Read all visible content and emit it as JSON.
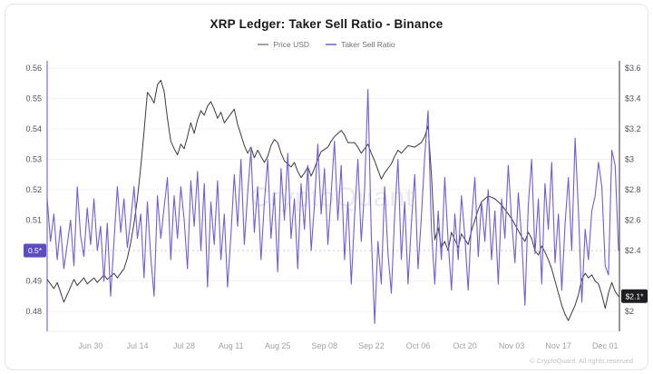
{
  "header": {
    "title": "XRP Ledger: Taker Sell Ratio - Binance"
  },
  "legend": {
    "items": [
      {
        "label": "Price USD",
        "color": "#a1a1aa"
      },
      {
        "label": "Taker Sell Ratio",
        "color": "#8f87d8"
      }
    ]
  },
  "footer": {
    "copyright": "© CryptoQuant. All rights reserved"
  },
  "chart_data": {
    "type": "line",
    "title": "XRP Ledger: Taker Sell Ratio - Binance",
    "watermark": "CryptoQuant",
    "x_axis": {
      "day_range": [
        0,
        171
      ],
      "tick_days": [
        13,
        27,
        41,
        55,
        69,
        83,
        97,
        111,
        125,
        139,
        153,
        167
      ],
      "tick_labels": [
        "Jun 30",
        "Jul 14",
        "Jul 28",
        "Aug 11",
        "Aug 25",
        "Sep 08",
        "Sep 22",
        "Oct 06",
        "Oct 20",
        "Nov 03",
        "Nov 17",
        "Dec 01"
      ]
    },
    "left_axis": {
      "name": "Taker Sell Ratio",
      "range": [
        0.48,
        0.56
      ],
      "grid_values": [
        0.48,
        0.49,
        0.5,
        0.51,
        0.52,
        0.53,
        0.54,
        0.55,
        0.56
      ],
      "tick_labels": [
        {
          "v": 0.48,
          "label": "0.48"
        },
        {
          "v": 0.49,
          "label": "0.49"
        },
        {
          "v": 0.51,
          "label": "0.51"
        },
        {
          "v": 0.52,
          "label": "0.52"
        },
        {
          "v": 0.53,
          "label": "0.53"
        },
        {
          "v": 0.54,
          "label": "0.54"
        },
        {
          "v": 0.55,
          "label": "0.55"
        },
        {
          "v": 0.56,
          "label": "0.56"
        }
      ],
      "badge": {
        "label": "0.5*",
        "value": 0.5,
        "color": "#5b4bc4",
        "text_color": "#ffffff"
      },
      "axis_line_color": "#7b6fd6"
    },
    "right_axis": {
      "name": "Price USD",
      "range": [
        2.0,
        3.6
      ],
      "tick_labels": [
        {
          "v": 2.0,
          "label": "$2"
        },
        {
          "v": 2.4,
          "label": "$2.4"
        },
        {
          "v": 2.6,
          "label": "$2.6"
        },
        {
          "v": 2.8,
          "label": "$2.8"
        },
        {
          "v": 3.0,
          "label": "$3"
        },
        {
          "v": 3.2,
          "label": "$3.2"
        },
        {
          "v": 3.4,
          "label": "$3.4"
        },
        {
          "v": 3.6,
          "label": "$3.6"
        }
      ],
      "badge": {
        "label": "$2.1*",
        "value": 2.1,
        "color": "#1f1f23",
        "text_color": "#ffffff"
      },
      "axis_line_color": "#52525b"
    },
    "reference_line": {
      "axis": "left",
      "value": 0.5,
      "style": "dashed",
      "color": "#cfcfcf"
    },
    "series": [
      {
        "name": "Price USD",
        "axis": "right",
        "color": "#3a3a40",
        "points": [
          [
            0,
            2.21
          ],
          [
            2,
            2.15
          ],
          [
            3,
            2.19
          ],
          [
            5,
            2.06
          ],
          [
            7,
            2.16
          ],
          [
            8,
            2.21
          ],
          [
            9,
            2.17
          ],
          [
            11,
            2.22
          ],
          [
            12,
            2.18
          ],
          [
            14,
            2.22
          ],
          [
            15,
            2.19
          ],
          [
            17,
            2.24
          ],
          [
            18,
            2.21
          ],
          [
            20,
            2.25
          ],
          [
            21,
            2.22
          ],
          [
            23,
            2.28
          ],
          [
            24,
            2.35
          ],
          [
            25,
            2.45
          ],
          [
            26,
            2.58
          ],
          [
            27,
            2.74
          ],
          [
            28,
            2.95
          ],
          [
            29,
            3.18
          ],
          [
            30,
            3.44
          ],
          [
            31,
            3.41
          ],
          [
            32,
            3.37
          ],
          [
            33,
            3.49
          ],
          [
            34,
            3.52
          ],
          [
            35,
            3.45
          ],
          [
            36,
            3.27
          ],
          [
            37,
            3.12
          ],
          [
            38,
            3.07
          ],
          [
            39,
            3.03
          ],
          [
            40,
            3.1
          ],
          [
            41,
            3.07
          ],
          [
            42,
            3.15
          ],
          [
            43,
            3.24
          ],
          [
            44,
            3.17
          ],
          [
            45,
            3.26
          ],
          [
            46,
            3.32
          ],
          [
            47,
            3.29
          ],
          [
            48,
            3.35
          ],
          [
            49,
            3.38
          ],
          [
            50,
            3.33
          ],
          [
            51,
            3.27
          ],
          [
            52,
            3.31
          ],
          [
            53,
            3.24
          ],
          [
            55,
            3.3
          ],
          [
            56,
            3.33
          ],
          [
            57,
            3.23
          ],
          [
            58,
            3.16
          ],
          [
            59,
            3.09
          ],
          [
            60,
            3.04
          ],
          [
            61,
            3.08
          ],
          [
            62,
            3.01
          ],
          [
            63,
            3.06
          ],
          [
            64,
            3.02
          ],
          [
            65,
            2.98
          ],
          [
            66,
            3.02
          ],
          [
            67,
            3.09
          ],
          [
            68,
            3.13
          ],
          [
            69,
            3.11
          ],
          [
            70,
            3.04
          ],
          [
            71,
            2.99
          ],
          [
            73,
            2.95
          ],
          [
            74,
            2.98
          ],
          [
            75,
            2.92
          ],
          [
            76,
            2.88
          ],
          [
            77,
            2.91
          ],
          [
            78,
            2.95
          ],
          [
            79,
            2.89
          ],
          [
            80,
            2.94
          ],
          [
            81,
            3.0
          ],
          [
            82,
            3.05
          ],
          [
            84,
            3.08
          ],
          [
            85,
            3.12
          ],
          [
            86,
            3.15
          ],
          [
            88,
            3.19
          ],
          [
            89,
            3.16
          ],
          [
            90,
            3.11
          ],
          [
            92,
            3.11
          ],
          [
            93,
            3.08
          ],
          [
            94,
            3.04
          ],
          [
            96,
            3.1
          ],
          [
            97,
            3.04
          ],
          [
            98,
            2.99
          ],
          [
            100,
            2.87
          ],
          [
            101,
            2.91
          ],
          [
            103,
            2.97
          ],
          [
            104,
            3.02
          ],
          [
            105,
            3.06
          ],
          [
            106,
            3.04
          ],
          [
            108,
            3.09
          ],
          [
            110,
            3.08
          ],
          [
            112,
            3.11
          ],
          [
            113,
            3.15
          ],
          [
            114,
            3.22
          ],
          [
            115,
            2.9
          ],
          [
            116,
            2.47
          ],
          [
            117,
            2.55
          ],
          [
            118,
            2.42
          ],
          [
            119,
            2.46
          ],
          [
            120,
            2.4
          ],
          [
            121,
            2.52
          ],
          [
            123,
            2.42
          ],
          [
            124,
            2.51
          ],
          [
            126,
            2.44
          ],
          [
            127,
            2.53
          ],
          [
            128,
            2.6
          ],
          [
            129,
            2.67
          ],
          [
            130,
            2.72
          ],
          [
            132,
            2.76
          ],
          [
            134,
            2.74
          ],
          [
            136,
            2.7
          ],
          [
            138,
            2.64
          ],
          [
            139,
            2.61
          ],
          [
            140,
            2.57
          ],
          [
            142,
            2.49
          ],
          [
            143,
            2.46
          ],
          [
            144,
            2.52
          ],
          [
            145,
            2.48
          ],
          [
            146,
            2.4
          ],
          [
            147,
            2.37
          ],
          [
            148,
            2.43
          ],
          [
            149,
            2.39
          ],
          [
            150,
            2.34
          ],
          [
            151,
            2.28
          ],
          [
            152,
            2.2
          ],
          [
            153,
            2.12
          ],
          [
            154,
            2.04
          ],
          [
            155,
            1.98
          ],
          [
            156,
            1.94
          ],
          [
            157,
            1.99
          ],
          [
            158,
            2.04
          ],
          [
            159,
            2.11
          ],
          [
            160,
            2.21
          ],
          [
            161,
            2.25
          ],
          [
            162,
            2.22
          ],
          [
            163,
            2.24
          ],
          [
            164,
            2.2
          ],
          [
            165,
            2.18
          ],
          [
            166,
            2.11
          ],
          [
            167,
            2.02
          ],
          [
            168,
            2.12
          ],
          [
            169,
            2.19
          ],
          [
            170,
            2.13
          ],
          [
            171,
            2.1
          ]
        ]
      },
      {
        "name": "Taker Sell Ratio",
        "axis": "left",
        "color": "#6e5fd6",
        "day_start": 0,
        "values": [
          0.517,
          0.503,
          0.512,
          0.497,
          0.508,
          0.494,
          0.502,
          0.51,
          0.495,
          0.521,
          0.505,
          0.498,
          0.514,
          0.502,
          0.517,
          0.5,
          0.508,
          0.49,
          0.509,
          0.485,
          0.503,
          0.521,
          0.506,
          0.517,
          0.501,
          0.51,
          0.521,
          0.504,
          0.512,
          0.491,
          0.516,
          0.498,
          0.485,
          0.518,
          0.504,
          0.514,
          0.524,
          0.497,
          0.518,
          0.504,
          0.521,
          0.51,
          0.494,
          0.523,
          0.508,
          0.526,
          0.5,
          0.522,
          0.488,
          0.516,
          0.502,
          0.523,
          0.497,
          0.512,
          0.488,
          0.505,
          0.525,
          0.508,
          0.53,
          0.502,
          0.519,
          0.533,
          0.506,
          0.521,
          0.497,
          0.516,
          0.53,
          0.504,
          0.519,
          0.493,
          0.527,
          0.51,
          0.532,
          0.504,
          0.517,
          0.494,
          0.522,
          0.507,
          0.528,
          0.5,
          0.515,
          0.535,
          0.512,
          0.527,
          0.502,
          0.519,
          0.536,
          0.51,
          0.528,
          0.497,
          0.516,
          0.489,
          0.511,
          0.53,
          0.503,
          0.52,
          0.553,
          0.505,
          0.476,
          0.503,
          0.489,
          0.521,
          0.499,
          0.486,
          0.512,
          0.53,
          0.497,
          0.516,
          0.489,
          0.509,
          0.525,
          0.494,
          0.511,
          0.531,
          0.546,
          0.507,
          0.489,
          0.513,
          0.497,
          0.524,
          0.503,
          0.487,
          0.512,
          0.497,
          0.518,
          0.505,
          0.487,
          0.51,
          0.524,
          0.498,
          0.516,
          0.503,
          0.52,
          0.497,
          0.513,
          0.489,
          0.517,
          0.504,
          0.528,
          0.51,
          0.496,
          0.519,
          0.504,
          0.482,
          0.515,
          0.53,
          0.499,
          0.517,
          0.489,
          0.522,
          0.507,
          0.529,
          0.496,
          0.512,
          0.487,
          0.509,
          0.524,
          0.5,
          0.537,
          0.513,
          0.483,
          0.507,
          0.497,
          0.513,
          0.518,
          0.529,
          0.521,
          0.495,
          0.492,
          0.533,
          0.528,
          0.5
        ]
      }
    ]
  }
}
